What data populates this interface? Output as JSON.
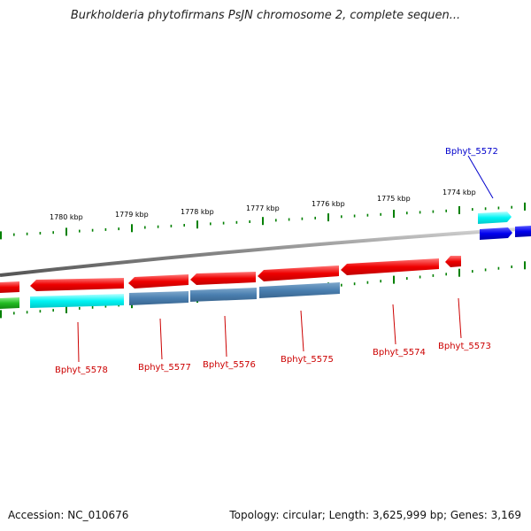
{
  "title": "Burkholderia phytofirmans PsJN chromosome 2, complete sequen...",
  "accession": "Accession: NC_010676",
  "summary": "Topology: circular; Length: 3,625,999 bp; Genes: 3,169",
  "kbp_labels": [
    "1780 kbp",
    "1779 kbp",
    "1778 kbp",
    "1777 kbp",
    "1776 kbp",
    "1775 kbp",
    "1774 kbp"
  ],
  "gene_labels": [
    "Bphyt_5572",
    "Bphyt_5573",
    "Bphyt_5574",
    "Bphyt_5575",
    "Bphyt_5576",
    "Bphyt_5577",
    "Bphyt_5578"
  ],
  "colors": {
    "cds_forward": "#ff0000",
    "cds_reverse_highlight": "#0000ee",
    "rna_cyan": "#00ffff",
    "steelblue": "#4682b4",
    "green": "#22bb22",
    "ticks": "#008000",
    "backbone": "#888888",
    "label_red": "#cc0000",
    "label_blue": "#0000cc"
  }
}
